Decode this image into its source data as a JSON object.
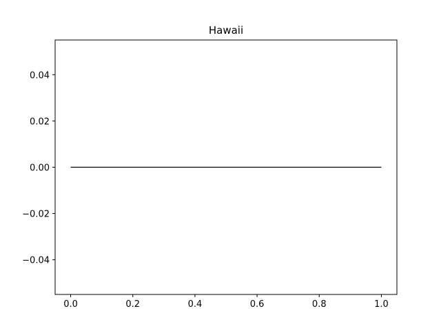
{
  "chart_data": {
    "type": "line",
    "title": "Hawaii",
    "xlabel": "",
    "ylabel": "",
    "xlim": [
      -0.05,
      1.05
    ],
    "ylim": [
      -0.055,
      0.055
    ],
    "x_ticks": [
      0.0,
      0.2,
      0.4,
      0.6,
      0.8,
      1.0
    ],
    "x_tick_labels": [
      "0.0",
      "0.2",
      "0.4",
      "0.6",
      "0.8",
      "1.0"
    ],
    "y_ticks": [
      0.04,
      0.02,
      0.0,
      -0.02,
      -0.04
    ],
    "y_tick_labels": [
      "0.04",
      "0.02",
      "0.00",
      "−0.02",
      "−0.04"
    ],
    "grid": false,
    "series": [
      {
        "x": [
          0.0,
          1.0
        ],
        "y": [
          0.0,
          0.0
        ],
        "color": "#000000"
      }
    ]
  }
}
